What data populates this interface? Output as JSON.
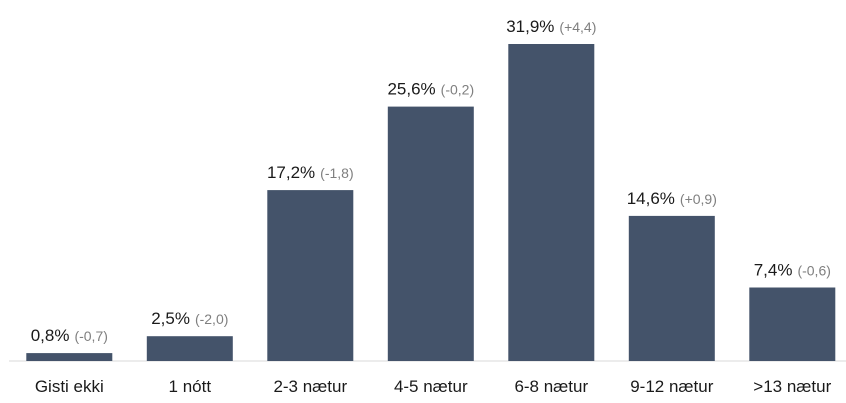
{
  "chart_data": {
    "type": "bar",
    "categories": [
      "Gisti ekki",
      "1 nótt",
      "2-3 nætur",
      "4-5 nætur",
      "6-8 nætur",
      "9-12 nætur",
      ">13 nætur"
    ],
    "values": [
      0.8,
      2.5,
      17.2,
      25.6,
      31.9,
      14.6,
      7.4
    ],
    "value_labels": [
      "0,8%",
      "2,5%",
      "17,2%",
      "25,6%",
      "31,9%",
      "14,6%",
      "7,4%"
    ],
    "change_labels": [
      "(-0,7)",
      "(-2,0)",
      "(-1,8)",
      "(-0,2)",
      "(+4,4)",
      "(+0,9)",
      "(-0,6)"
    ],
    "title": "",
    "xlabel": "",
    "ylabel": "",
    "ylim": [
      0,
      31.9
    ],
    "grid": false,
    "legend": "none",
    "bar_color": "#44536a",
    "change_color": "#7f7f7f"
  }
}
